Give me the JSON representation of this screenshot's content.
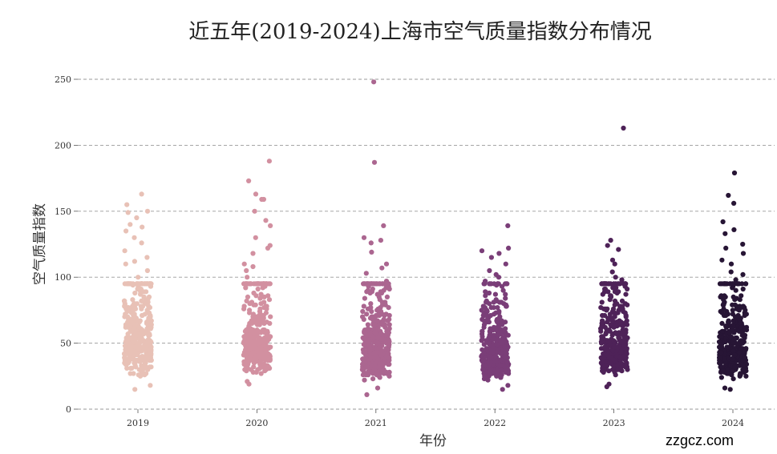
{
  "chart_data": {
    "type": "scatter",
    "subtype": "strip",
    "title": "近五年(2019-2024)上海市空气质量指数分布情况",
    "xlabel": "年份",
    "ylabel": "空气质量指数",
    "ylim": [
      0,
      260
    ],
    "yticks": [
      0,
      50,
      100,
      150,
      200,
      250
    ],
    "grid": "horizontal dashed",
    "categories": [
      "2019",
      "2020",
      "2021",
      "2022",
      "2023",
      "2024"
    ],
    "series": [
      {
        "name": "2019",
        "color": "#e8c1b6",
        "summary": {
          "min": 15,
          "max": 163,
          "n": 365,
          "median": 55
        },
        "notable_points": [
          163,
          155,
          150,
          149,
          145,
          140,
          138,
          135,
          130,
          126,
          120,
          115,
          112,
          110,
          105,
          100,
          18,
          15
        ]
      },
      {
        "name": "2020",
        "color": "#d290a0",
        "summary": {
          "min": 19,
          "max": 188,
          "n": 366,
          "median": 52
        },
        "notable_points": [
          188,
          173,
          163,
          159,
          159,
          150,
          143,
          139,
          130,
          124,
          122,
          118,
          110,
          108,
          105,
          100,
          21,
          19
        ]
      },
      {
        "name": "2021",
        "color": "#ab6690",
        "summary": {
          "min": 11,
          "max": 248,
          "n": 365,
          "median": 48
        },
        "notable_points": [
          248,
          187,
          139,
          130,
          128,
          126,
          119,
          110,
          107,
          103,
          97,
          93,
          90,
          16,
          11
        ]
      },
      {
        "name": "2022",
        "color": "#7a3e78",
        "summary": {
          "min": 15,
          "max": 139,
          "n": 365,
          "median": 45
        },
        "notable_points": [
          139,
          122,
          120,
          118,
          115,
          110,
          105,
          102,
          100,
          97,
          95,
          90,
          88,
          18,
          15
        ]
      },
      {
        "name": "2023",
        "color": "#4e2258",
        "summary": {
          "min": 17,
          "max": 213,
          "n": 365,
          "median": 48
        },
        "notable_points": [
          213,
          128,
          124,
          121,
          113,
          110,
          104,
          100,
          98,
          95,
          92,
          88,
          85,
          19,
          17
        ]
      },
      {
        "name": "2024",
        "color": "#271535",
        "summary": {
          "min": 15,
          "max": 179,
          "n": 366,
          "median": 46
        },
        "notable_points": [
          179,
          162,
          156,
          142,
          136,
          133,
          125,
          122,
          118,
          113,
          110,
          104,
          102,
          98,
          95,
          90,
          85,
          16,
          15
        ]
      }
    ]
  },
  "watermark": "zzgcz.com"
}
